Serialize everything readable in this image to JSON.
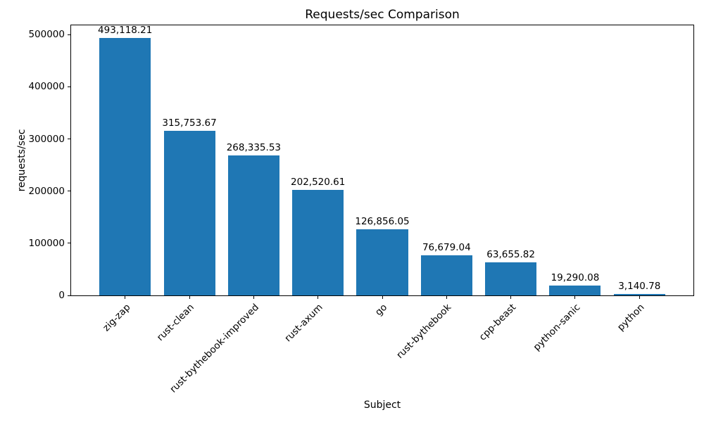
{
  "chart_data": {
    "type": "bar",
    "title": "Requests/sec Comparison",
    "xlabel": "Subject",
    "ylabel": "requests/sec",
    "categories": [
      "zig-zap",
      "rust-clean",
      "rust-bythebook-improved",
      "rust-axum",
      "go",
      "rust-bythebook",
      "cpp-beast",
      "python-sanic",
      "python"
    ],
    "values": [
      493118.21,
      315753.67,
      268335.53,
      202520.61,
      126856.05,
      76679.04,
      63655.82,
      19290.08,
      3140.78
    ],
    "bar_value_labels": [
      "493,118.21",
      "315,753.67",
      "268,335.53",
      "202,520.61",
      "126,856.05",
      "76,679.04",
      "63,655.82",
      "19,290.08",
      "3,140.78"
    ],
    "yticks": [
      0,
      100000,
      200000,
      300000,
      400000,
      500000
    ],
    "ytick_labels": [
      "0",
      "100000",
      "200000",
      "300000",
      "400000",
      "500000"
    ],
    "ylim": [
      0,
      517774
    ],
    "bar_color": "#1f77b4",
    "grid": false,
    "legend": "none",
    "x_tick_rotation_deg": 45
  }
}
